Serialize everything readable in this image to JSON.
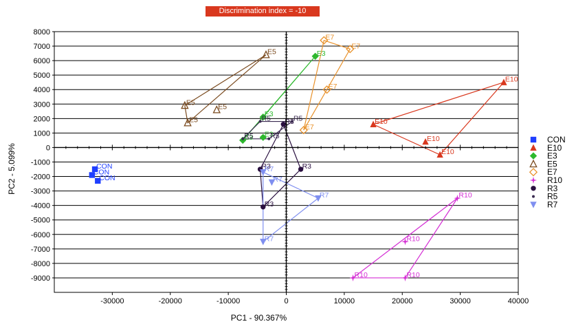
{
  "chart_data": {
    "type": "scatter",
    "title": "Discrimination index = -10",
    "xlabel": "PC1 - 90.367%",
    "ylabel": "PC2 - 5.099%",
    "xlim": [
      -40000,
      40000
    ],
    "ylim": [
      -10000,
      8000
    ],
    "xticks": [
      -30000,
      -20000,
      -10000,
      0,
      10000,
      20000,
      30000,
      40000
    ],
    "yticks": [
      8000,
      7000,
      6000,
      5000,
      4000,
      3000,
      2000,
      1000,
      0,
      -1000,
      -2000,
      -3000,
      -4000,
      -5000,
      -6000,
      -7000,
      -8000,
      -9000
    ],
    "grid": true,
    "legend_position": "right",
    "series": [
      {
        "name": "CON",
        "color": "#1f3fff",
        "marker": "square",
        "label": "CON",
        "points": [
          [
            -33000,
            -1500
          ],
          [
            -33500,
            -1900
          ],
          [
            -32500,
            -2300
          ]
        ],
        "hull": []
      },
      {
        "name": "E10",
        "color": "#d9381e",
        "marker": "triangle",
        "label": "E10",
        "points": [
          [
            37500,
            4500
          ],
          [
            15000,
            1600
          ],
          [
            24000,
            400
          ],
          [
            26500,
            -500
          ]
        ],
        "hull": [
          0,
          1,
          3
        ]
      },
      {
        "name": "E3",
        "color": "#2db82d",
        "marker": "diamond",
        "label": "E3",
        "points": [
          [
            5000,
            6300
          ],
          [
            -4000,
            2100
          ],
          [
            -4000,
            700
          ],
          [
            -7500,
            500
          ]
        ],
        "hull": [
          0,
          3,
          1
        ]
      },
      {
        "name": "E5",
        "color": "#7a4a1e",
        "marker": "triangle-open",
        "label": "E5",
        "points": [
          [
            -3500,
            6400
          ],
          [
            -17500,
            2900
          ],
          [
            -12000,
            2600
          ],
          [
            -17000,
            1700
          ]
        ],
        "hull": [
          0,
          1,
          3
        ]
      },
      {
        "name": "E7",
        "color": "#e8912a",
        "marker": "diamond-open",
        "label": "E7",
        "points": [
          [
            6500,
            7400
          ],
          [
            11000,
            6800
          ],
          [
            7000,
            4000
          ],
          [
            3000,
            1200
          ]
        ],
        "hull": [
          0,
          1,
          3
        ]
      },
      {
        "name": "R10",
        "color": "#d42ed4",
        "marker": "star",
        "label": "R10",
        "points": [
          [
            29500,
            -3500
          ],
          [
            20500,
            -6500
          ],
          [
            11500,
            -9000
          ],
          [
            20500,
            -9000
          ]
        ],
        "hull": [
          0,
          2,
          3
        ]
      },
      {
        "name": "R3",
        "color": "#2a1040",
        "marker": "circle",
        "label": "R3",
        "points": [
          [
            -500,
            1600
          ],
          [
            -4500,
            -1500
          ],
          [
            2500,
            -1500
          ],
          [
            -4000,
            -4100
          ]
        ],
        "hull": [
          0,
          1,
          3,
          2
        ]
      },
      {
        "name": "R5",
        "color": "#3a2a50",
        "marker": "dot",
        "label": "R5",
        "points": [
          [
            -4500,
            1800
          ],
          [
            1000,
            1800
          ],
          [
            -7500,
            600
          ],
          [
            -3000,
            600
          ]
        ],
        "hull": [
          0,
          1,
          3,
          2
        ]
      },
      {
        "name": "R7",
        "color": "#7f8ff0",
        "marker": "triangle-down",
        "label": "R7",
        "points": [
          [
            -4000,
            -1700
          ],
          [
            -2500,
            -2400
          ],
          [
            5500,
            -3500
          ],
          [
            -4000,
            -6500
          ]
        ],
        "hull": [
          0,
          2,
          3
        ]
      }
    ]
  }
}
